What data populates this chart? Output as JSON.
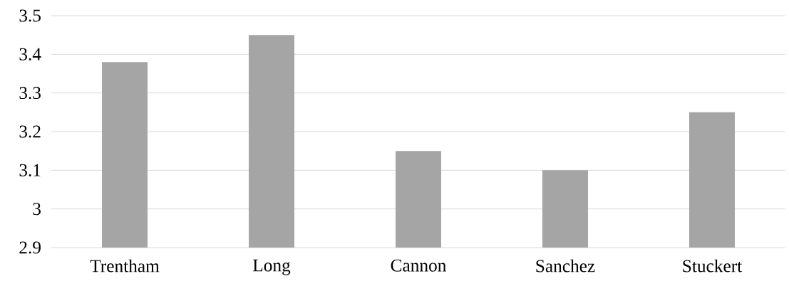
{
  "chart_data": {
    "type": "bar",
    "categories": [
      "Trentham",
      "Long",
      "Cannon",
      "Sanchez",
      "Stuckert"
    ],
    "values": [
      3.38,
      3.45,
      3.15,
      3.1,
      3.25
    ],
    "color": "#a5a5a5",
    "ylim": [
      2.9,
      3.5
    ],
    "yticks": [
      2.9,
      3,
      3.1,
      3.2,
      3.3,
      3.4,
      3.5
    ],
    "grid": "y"
  }
}
